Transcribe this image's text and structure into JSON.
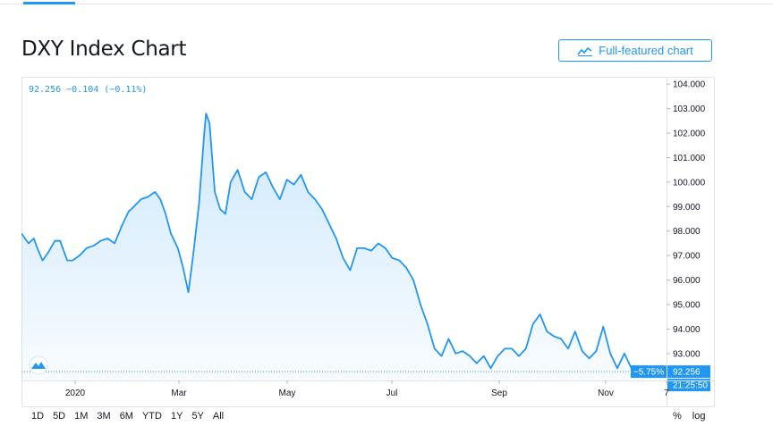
{
  "page": {
    "title": "DXY Index Chart",
    "full_chart_button": "Full-featured chart",
    "full_chart_icon": "chart-line-icon",
    "accent": "#2196f3"
  },
  "legend": {
    "text": "92.256 −0.104 (−0.11%)"
  },
  "ranges": [
    "1D",
    "5D",
    "1M",
    "3M",
    "6M",
    "YTD",
    "1Y",
    "5Y",
    "All"
  ],
  "scale_options": [
    "%",
    "log"
  ],
  "chart_data": {
    "type": "area",
    "title": "",
    "xlabel": "",
    "ylabel": "",
    "x_ticks": [
      "2020",
      "Mar",
      "May",
      "Jul",
      "Sep",
      "Nov",
      "7"
    ],
    "y_ticks": [
      "93.000",
      "94.000",
      "95.000",
      "96.000",
      "97.000",
      "98.000",
      "99.000",
      "100.000",
      "101.000",
      "102.000",
      "103.000",
      "104.000"
    ],
    "ylim": [
      91.9,
      104.3
    ],
    "xlim": [
      "2019-12-05",
      "2020-12-06"
    ],
    "last_value_label": "92.256",
    "last_change_label": "−5.75%",
    "time_label": "21:25:50",
    "line_color": "#2196f3",
    "grid": false,
    "series": [
      {
        "x": [
          "2019-12-05",
          "2019-12-09",
          "2019-12-12",
          "2019-12-14",
          "2019-12-17",
          "2019-12-20",
          "2019-12-24",
          "2019-12-27",
          "2019-12-31",
          "2020-01-03",
          "2020-01-07",
          "2020-01-11",
          "2020-01-15",
          "2020-01-19",
          "2020-01-23",
          "2020-01-27",
          "2020-01-31",
          "2020-02-04",
          "2020-02-07",
          "2020-02-11",
          "2020-02-15",
          "2020-02-19",
          "2020-02-22",
          "2020-02-25",
          "2020-02-28",
          "2020-03-03",
          "2020-03-06",
          "2020-03-09",
          "2020-03-12",
          "2020-03-15",
          "2020-03-18",
          "2020-03-19",
          "2020-03-21",
          "2020-03-24",
          "2020-03-27",
          "2020-03-30",
          "2020-04-02",
          "2020-04-06",
          "2020-04-10",
          "2020-04-14",
          "2020-04-18",
          "2020-04-22",
          "2020-04-26",
          "2020-04-30",
          "2020-05-04",
          "2020-05-08",
          "2020-05-12",
          "2020-05-16",
          "2020-05-20",
          "2020-05-24",
          "2020-05-28",
          "2020-06-01",
          "2020-06-05",
          "2020-06-09",
          "2020-06-13",
          "2020-06-17",
          "2020-06-21",
          "2020-06-25",
          "2020-06-29",
          "2020-07-03",
          "2020-07-07",
          "2020-07-11",
          "2020-07-15",
          "2020-07-19",
          "2020-07-23",
          "2020-07-27",
          "2020-07-31",
          "2020-08-04",
          "2020-08-08",
          "2020-08-12",
          "2020-08-16",
          "2020-08-20",
          "2020-08-24",
          "2020-08-28",
          "2020-09-01",
          "2020-09-05",
          "2020-09-09",
          "2020-09-13",
          "2020-09-17",
          "2020-09-21",
          "2020-09-25",
          "2020-09-29",
          "2020-10-03",
          "2020-10-07",
          "2020-10-11",
          "2020-10-15",
          "2020-10-19",
          "2020-10-23",
          "2020-10-27",
          "2020-10-31",
          "2020-11-04",
          "2020-11-08",
          "2020-11-12",
          "2020-11-16",
          "2020-11-20"
        ],
        "y": [
          97.9,
          97.5,
          97.7,
          97.3,
          96.8,
          97.1,
          97.6,
          97.6,
          96.8,
          96.8,
          97.0,
          97.3,
          97.4,
          97.6,
          97.7,
          97.5,
          98.2,
          98.8,
          99.0,
          99.3,
          99.4,
          99.6,
          99.3,
          98.7,
          97.9,
          97.3,
          96.5,
          95.5,
          97.2,
          99.1,
          102.0,
          102.8,
          102.4,
          99.6,
          98.9,
          98.7,
          100.0,
          100.5,
          99.6,
          99.3,
          100.2,
          100.4,
          99.8,
          99.3,
          100.1,
          99.9,
          100.3,
          99.6,
          99.3,
          98.9,
          98.3,
          97.7,
          96.9,
          96.4,
          97.3,
          97.3,
          97.2,
          97.5,
          97.3,
          96.9,
          96.8,
          96.5,
          96.0,
          95.0,
          94.2,
          93.2,
          92.9,
          93.6,
          93.0,
          93.1,
          92.9,
          92.6,
          92.9,
          92.4,
          92.9,
          93.2,
          93.2,
          92.9,
          93.2,
          94.2,
          94.6,
          93.9,
          93.7,
          93.6,
          93.2,
          93.9,
          93.1,
          92.8,
          93.1,
          94.1,
          93.0,
          92.4,
          93.0,
          92.4,
          92.26
        ]
      }
    ]
  }
}
